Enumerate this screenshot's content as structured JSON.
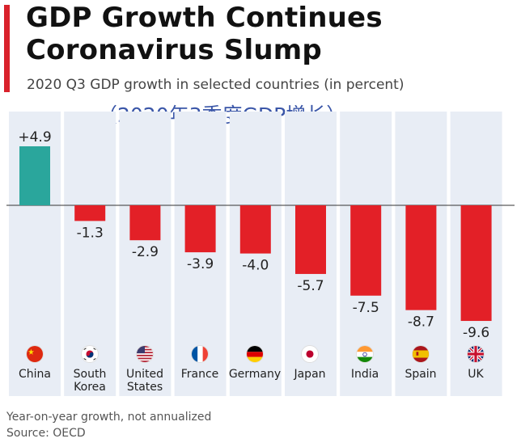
{
  "header": {
    "title_line1": "GDP Growth Continues",
    "title_line2": "Coronavirus Slump",
    "subtitle": "2020 Q3 GDP growth in selected countries (in percent)",
    "cn_note": "（2020年3季度GDP增长）"
  },
  "colors": {
    "accent": "#d9222b",
    "positive": "#2aa69c",
    "negative": "#e32027",
    "column_bg": "#e8edf5"
  },
  "chart_data": {
    "type": "bar",
    "title": "GDP Growth Continues Coronavirus Slump",
    "subtitle": "2020 Q3 GDP growth in selected countries (in percent)",
    "categories": [
      "China",
      "South Korea",
      "United States",
      "France",
      "Germany",
      "Japan",
      "India",
      "Spain",
      "UK"
    ],
    "values": [
      4.9,
      -1.3,
      -2.9,
      -3.9,
      -4.0,
      -5.7,
      -7.5,
      -8.7,
      -9.6
    ],
    "value_labels": [
      "+4.9",
      "-1.3",
      "-2.9",
      "-3.9",
      "-4.0",
      "-5.7",
      "-7.5",
      "-8.7",
      "-9.6"
    ],
    "xlabel": "",
    "ylabel": "",
    "ylim": [
      -9.6,
      4.9
    ],
    "grid": false,
    "legend": "none"
  },
  "countries": [
    {
      "name_line1": "China",
      "name_line2": "",
      "flag": "china-flag-icon"
    },
    {
      "name_line1": "South",
      "name_line2": "Korea",
      "flag": "south-korea-flag-icon"
    },
    {
      "name_line1": "United",
      "name_line2": "States",
      "flag": "united-states-flag-icon"
    },
    {
      "name_line1": "France",
      "name_line2": "",
      "flag": "france-flag-icon"
    },
    {
      "name_line1": "Germany",
      "name_line2": "",
      "flag": "germany-flag-icon"
    },
    {
      "name_line1": "Japan",
      "name_line2": "",
      "flag": "japan-flag-icon"
    },
    {
      "name_line1": "India",
      "name_line2": "",
      "flag": "india-flag-icon"
    },
    {
      "name_line1": "Spain",
      "name_line2": "",
      "flag": "spain-flag-icon"
    },
    {
      "name_line1": "UK",
      "name_line2": "",
      "flag": "uk-flag-icon"
    }
  ],
  "footer": {
    "note": "Year-on-year growth, not annualized",
    "source": "Source: OECD"
  }
}
